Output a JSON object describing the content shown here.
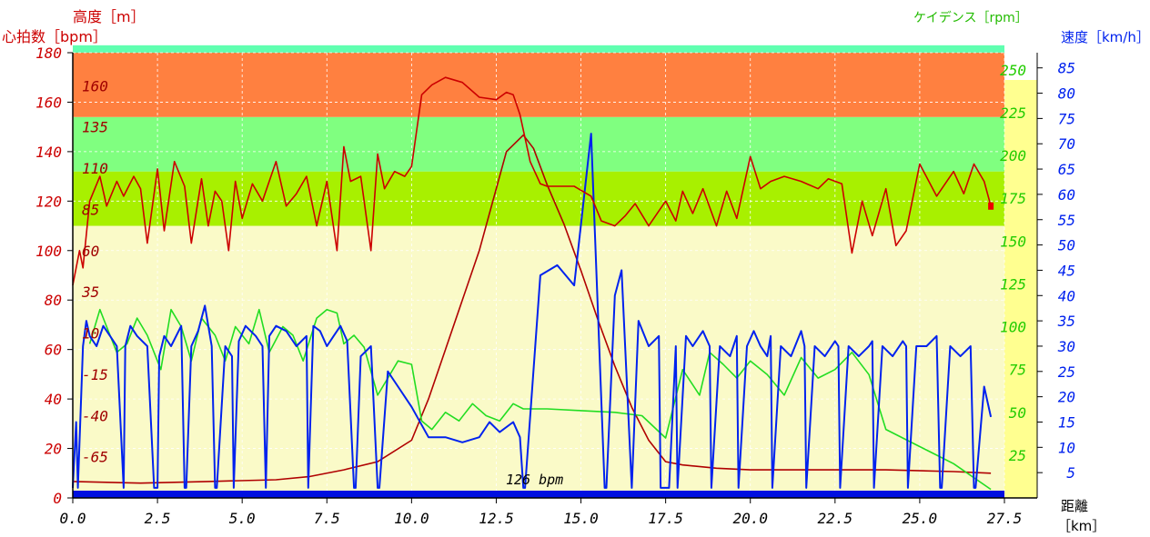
{
  "chart_data": {
    "type": "line",
    "axis_titles": {
      "altitude": "高度［m］",
      "heart_rate": "心拍数［bpm］",
      "cadence": "ケイデンス［rpm］",
      "speed": "速度［km/h］",
      "distance": "距離",
      "distance_unit": "［km］"
    },
    "annotation": "126 bpm",
    "x": {
      "ticks": [
        "0.0",
        "2.5",
        "5.0",
        "7.5",
        "10.0",
        "12.5",
        "15.0",
        "17.5",
        "20.0",
        "22.5",
        "25.0",
        "27.5"
      ],
      "xlim": [
        0,
        27.5
      ]
    },
    "hr_axis": {
      "ticks": [
        "0",
        "20",
        "40",
        "60",
        "80",
        "100",
        "120",
        "140",
        "160",
        "180"
      ],
      "ylim": [
        0,
        180
      ]
    },
    "altitude_axis": {
      "ticks": [
        "-65",
        "-40",
        "-15",
        "10",
        "35",
        "60",
        "85",
        "110",
        "135",
        "160"
      ],
      "ylim": [
        -90,
        180
      ]
    },
    "cadence_axis": {
      "ticks": [
        "25",
        "50",
        "75",
        "100",
        "125",
        "150",
        "175",
        "200",
        "225",
        "250"
      ],
      "ylim": [
        0,
        260
      ]
    },
    "speed_axis": {
      "ticks": [
        "5",
        "10",
        "15",
        "20",
        "25",
        "30",
        "35",
        "40",
        "45",
        "50",
        "55",
        "60",
        "65",
        "70",
        "75",
        "80",
        "85"
      ],
      "ylim": [
        0,
        88
      ]
    },
    "hr_zones": [
      {
        "from": 0,
        "to": 110,
        "color": "#FAFAC8"
      },
      {
        "from": 110,
        "to": 132,
        "color": "#A8F000"
      },
      {
        "from": 132,
        "to": 154,
        "color": "#80FF80"
      },
      {
        "from": 154,
        "to": 180,
        "color": "#FF8040"
      },
      {
        "from": 180,
        "to": 183,
        "color": "#60FFB0"
      }
    ],
    "series": [
      {
        "name": "心拍数",
        "color": "#CC0000",
        "x": [
          0,
          0.2,
          0.3,
          0.5,
          0.8,
          1.0,
          1.3,
          1.5,
          1.8,
          2.0,
          2.2,
          2.5,
          2.7,
          3.0,
          3.3,
          3.5,
          3.8,
          4.0,
          4.2,
          4.4,
          4.6,
          4.8,
          5.0,
          5.3,
          5.6,
          6.0,
          6.3,
          6.6,
          6.9,
          7.2,
          7.5,
          7.8,
          8.0,
          8.2,
          8.5,
          8.8,
          9.0,
          9.2,
          9.5,
          9.8,
          10.0,
          10.3,
          10.6,
          11.0,
          11.5,
          12.0,
          12.5,
          12.8,
          13.0,
          13.2,
          13.5,
          13.8,
          14.0,
          14.3,
          14.8,
          15.3,
          15.6,
          16.0,
          16.3,
          16.6,
          17.0,
          17.5,
          17.8,
          18.0,
          18.3,
          18.6,
          19.0,
          19.3,
          19.6,
          20.0,
          20.3,
          20.6,
          21.0,
          21.5,
          22.0,
          22.3,
          22.7,
          23.0,
          23.3,
          23.6,
          24.0,
          24.3,
          24.6,
          25.0,
          25.5,
          26.0,
          26.3,
          26.6,
          26.9,
          27.1
        ],
        "values": [
          86,
          100,
          93,
          120,
          130,
          118,
          128,
          122,
          130,
          125,
          103,
          133,
          108,
          136,
          126,
          103,
          129,
          110,
          124,
          120,
          100,
          128,
          113,
          127,
          120,
          136,
          118,
          123,
          130,
          110,
          128,
          100,
          142,
          128,
          130,
          100,
          139,
          125,
          132,
          130,
          134,
          163,
          167,
          170,
          168,
          162,
          161,
          164,
          163,
          155,
          136,
          127,
          126,
          126,
          126,
          122,
          112,
          110,
          114,
          119,
          110,
          120,
          112,
          124,
          115,
          125,
          110,
          124,
          113,
          138,
          125,
          128,
          130,
          128,
          125,
          129,
          127,
          99,
          120,
          106,
          125,
          102,
          108,
          135,
          122,
          132,
          123,
          135,
          128,
          118
        ]
      },
      {
        "name": "高度",
        "color": "#B00000",
        "x": [
          0,
          2,
          4,
          6,
          7,
          8,
          9,
          10,
          10.5,
          11,
          12,
          12.8,
          13.3,
          13.6,
          14,
          14.5,
          15,
          15.5,
          16,
          16.5,
          17,
          17.5,
          18,
          19,
          20,
          22,
          24,
          26,
          27.1
        ],
        "values": [
          -80,
          -81,
          -80,
          -79,
          -77,
          -73,
          -68,
          -55,
          -30,
          0,
          60,
          120,
          130,
          122,
          100,
          76,
          48,
          18,
          -10,
          -35,
          -55,
          -68,
          -70,
          -72,
          -73,
          -73,
          -73,
          -74,
          -75
        ]
      },
      {
        "name": "ケイデンス",
        "color": "#22DD22",
        "x": [
          0.5,
          0.8,
          1.0,
          1.3,
          1.6,
          1.9,
          2.2,
          2.6,
          2.9,
          3.2,
          3.5,
          3.8,
          4.2,
          4.5,
          4.8,
          5.2,
          5.5,
          5.8,
          6.2,
          6.5,
          6.8,
          7.2,
          7.5,
          7.8,
          8.0,
          8.3,
          8.6,
          9.0,
          9.3,
          9.6,
          10.0,
          10.3,
          10.6,
          11.0,
          11.4,
          11.8,
          12.2,
          12.6,
          13.0,
          13.3,
          14.0,
          15.0,
          16.0,
          16.8,
          17.5,
          18.0,
          18.5,
          18.8,
          19.2,
          19.6,
          20.0,
          20.5,
          21.0,
          21.5,
          22.0,
          22.5,
          23.0,
          23.5,
          24.0,
          25.0,
          26.0,
          27.1
        ],
        "values": [
          90,
          110,
          100,
          85,
          90,
          105,
          95,
          75,
          110,
          100,
          80,
          105,
          95,
          80,
          100,
          90,
          110,
          85,
          100,
          95,
          80,
          105,
          110,
          108,
          90,
          95,
          88,
          60,
          70,
          80,
          78,
          45,
          40,
          50,
          45,
          55,
          48,
          45,
          55,
          52,
          52,
          51,
          50,
          48,
          35,
          75,
          60,
          85,
          78,
          70,
          80,
          72,
          60,
          82,
          70,
          75,
          85,
          72,
          40,
          30,
          20,
          5
        ]
      },
      {
        "name": "速度",
        "color": "#0022EE",
        "x": [
          0,
          0.1,
          0.15,
          0.3,
          0.4,
          0.5,
          0.7,
          0.9,
          1.1,
          1.3,
          1.5,
          1.55,
          1.7,
          1.9,
          2.2,
          2.4,
          2.5,
          2.55,
          2.7,
          2.9,
          3.2,
          3.3,
          3.35,
          3.5,
          3.7,
          3.9,
          4.1,
          4.2,
          4.25,
          4.5,
          4.7,
          4.75,
          4.9,
          5.1,
          5.4,
          5.6,
          5.7,
          5.8,
          6.0,
          6.3,
          6.6,
          6.9,
          6.95,
          7.1,
          7.3,
          7.5,
          7.7,
          7.9,
          8.1,
          8.3,
          8.35,
          8.5,
          8.8,
          9.0,
          9.05,
          9.3,
          9.6,
          10.0,
          10.5,
          11.0,
          11.5,
          12.0,
          12.3,
          12.6,
          13.0,
          13.2,
          13.3,
          13.35,
          13.8,
          14.3,
          14.8,
          15.3,
          15.7,
          15.75,
          16.0,
          16.2,
          16.5,
          16.7,
          17.0,
          17.3,
          17.35,
          17.6,
          17.8,
          17.85,
          18.1,
          18.3,
          18.6,
          18.8,
          18.85,
          19.1,
          19.4,
          19.6,
          19.65,
          19.9,
          20.1,
          20.3,
          20.5,
          20.6,
          20.65,
          20.9,
          21.2,
          21.5,
          21.6,
          21.65,
          21.9,
          22.2,
          22.5,
          22.6,
          22.65,
          22.9,
          23.2,
          23.5,
          23.6,
          23.65,
          23.9,
          24.2,
          24.5,
          24.6,
          24.65,
          24.9,
          25.2,
          25.5,
          25.6,
          25.65,
          25.9,
          26.2,
          26.5,
          26.6,
          26.65,
          26.9,
          27.1
        ],
        "values": [
          2,
          15,
          2,
          30,
          35,
          32,
          30,
          34,
          32,
          30,
          2,
          30,
          34,
          32,
          30,
          2,
          2,
          28,
          32,
          30,
          34,
          2,
          2,
          30,
          33,
          38,
          30,
          2,
          2,
          30,
          28,
          2,
          31,
          34,
          32,
          30,
          2,
          32,
          34,
          33,
          30,
          32,
          2,
          34,
          33,
          30,
          32,
          34,
          31,
          2,
          2,
          28,
          30,
          2,
          2,
          25,
          22,
          18,
          12,
          12,
          11,
          12,
          15,
          13,
          15,
          12,
          2,
          2,
          44,
          46,
          42,
          72,
          2,
          2,
          40,
          45,
          2,
          35,
          30,
          32,
          2,
          2,
          30,
          2,
          32,
          30,
          33,
          30,
          2,
          30,
          28,
          32,
          2,
          30,
          33,
          30,
          28,
          32,
          2,
          30,
          28,
          33,
          30,
          2,
          30,
          28,
          31,
          30,
          2,
          30,
          28,
          30,
          31,
          2,
          30,
          28,
          31,
          30,
          2,
          30,
          30,
          32,
          2,
          2,
          30,
          28,
          30,
          2,
          2,
          22,
          16
        ]
      }
    ]
  }
}
